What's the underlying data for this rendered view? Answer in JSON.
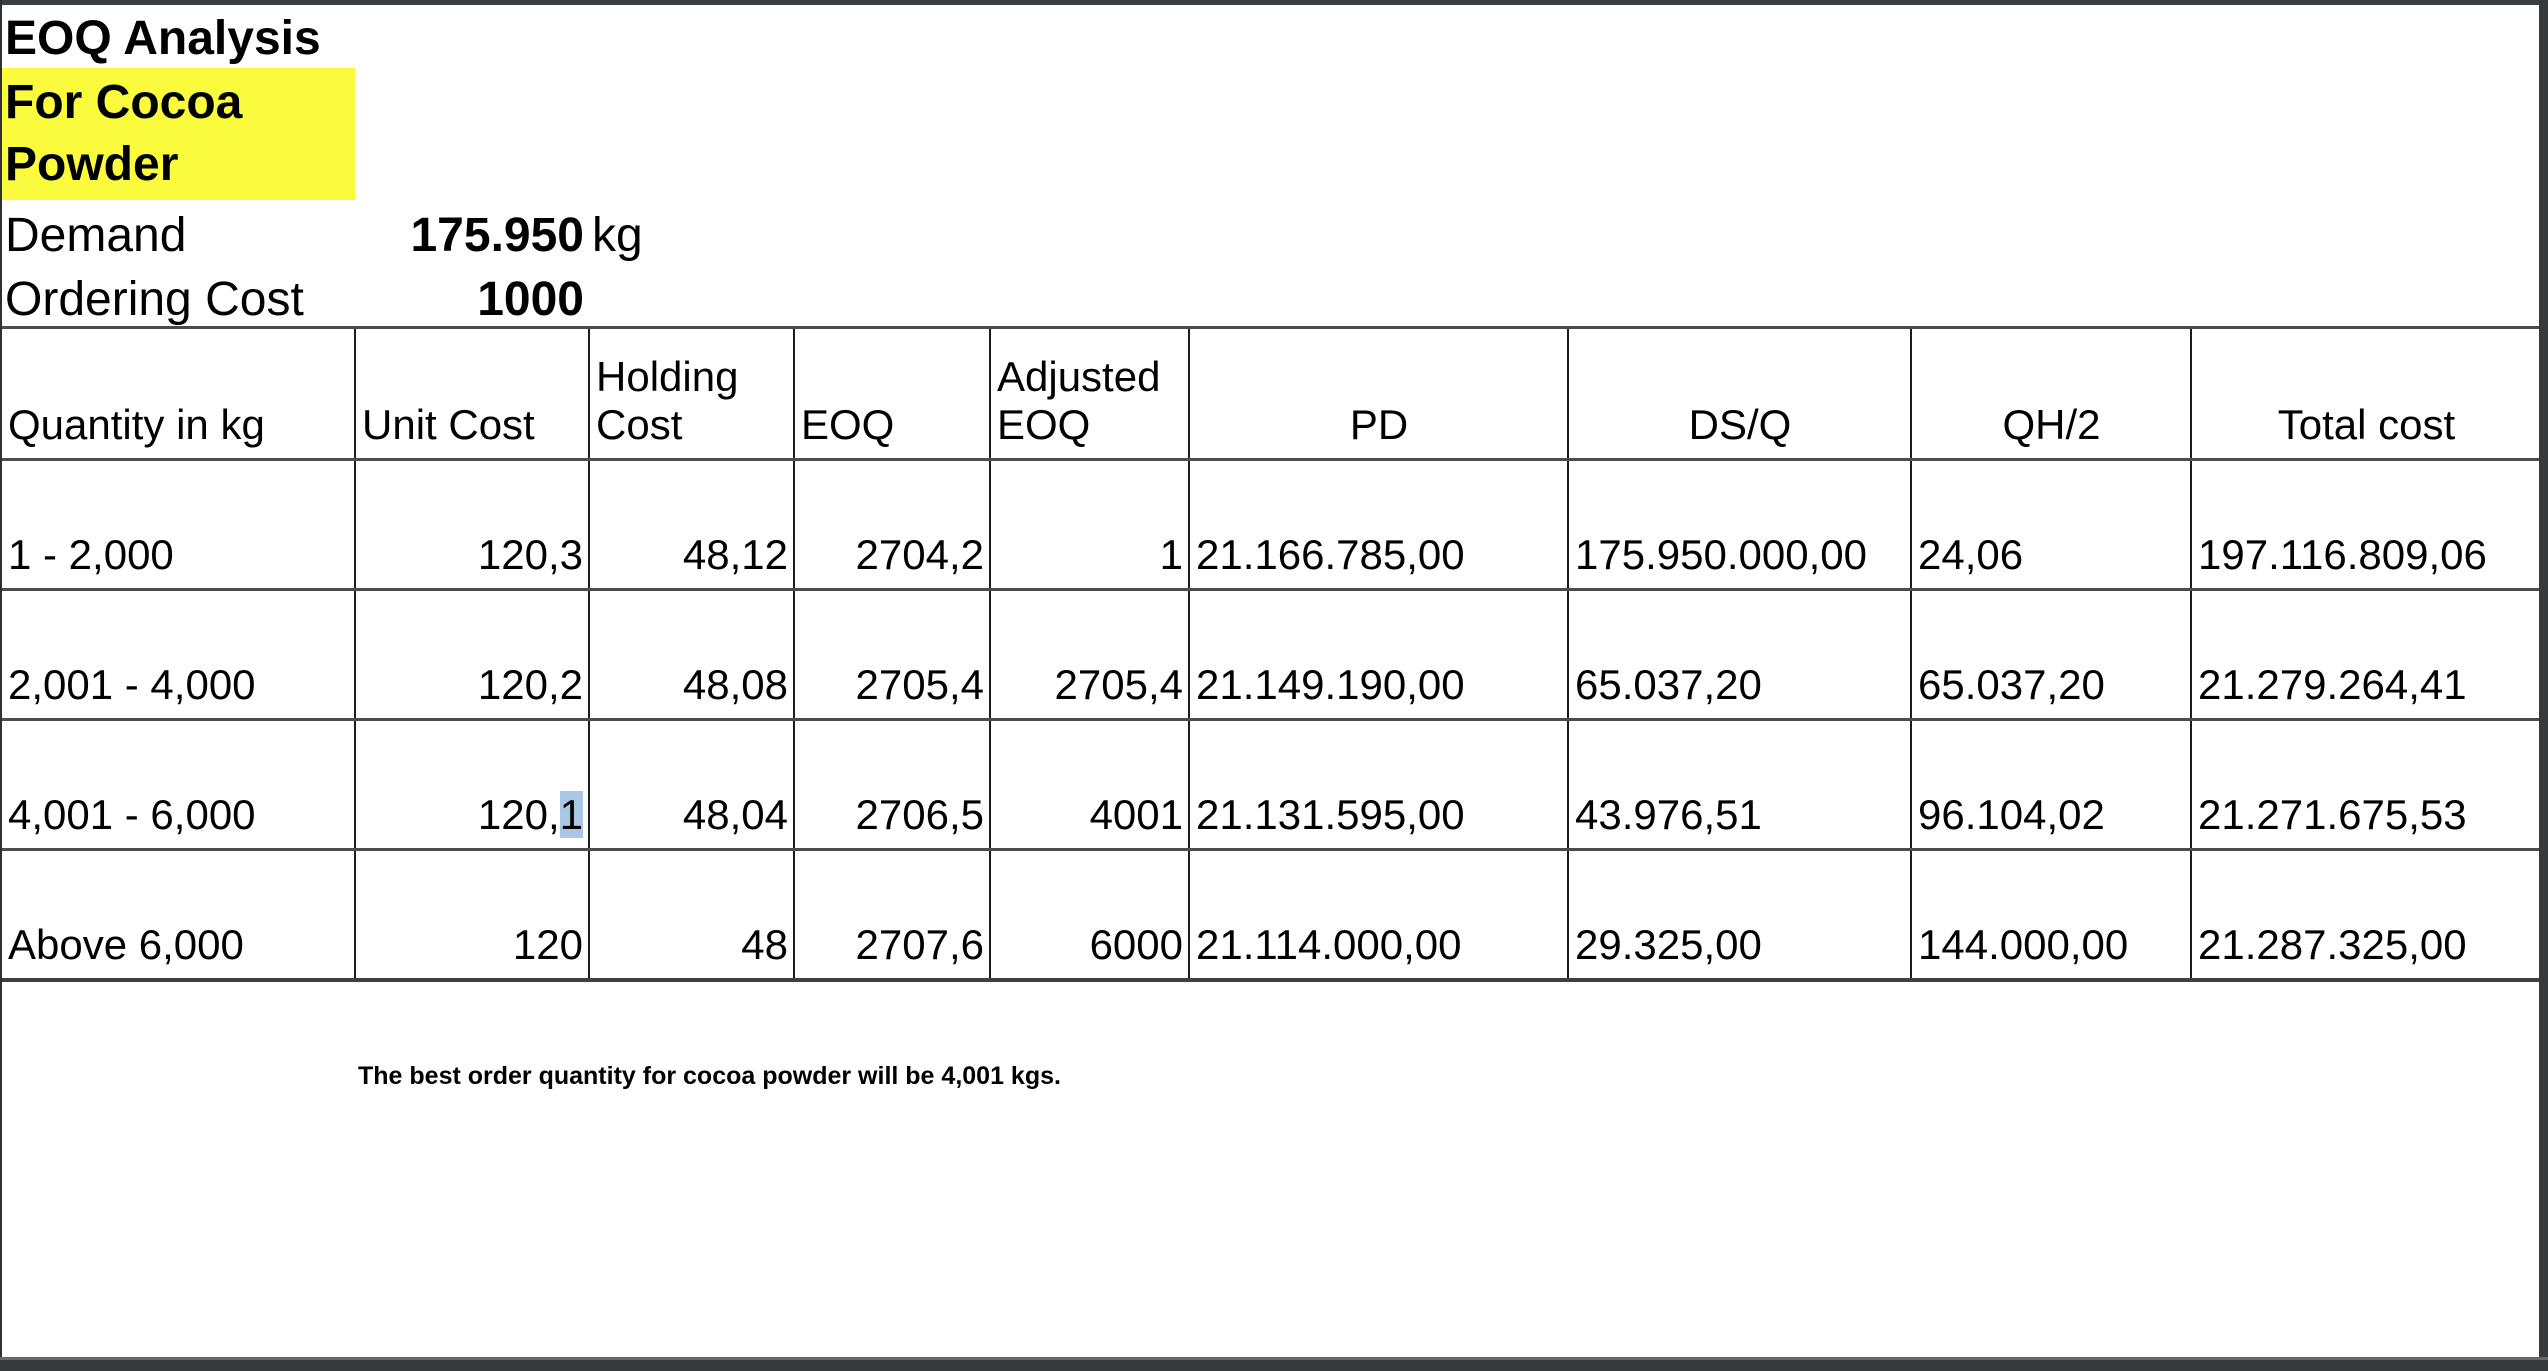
{
  "sheet": {
    "title": "EOQ Analysis",
    "subtitle_lines": [
      "For Cocoa",
      "Powder"
    ],
    "highlight_color": "#fbfb3e",
    "selection_color": "#a9c7e5",
    "parameters": [
      {
        "label": "Demand",
        "value": "175.950",
        "unit": "kg"
      },
      {
        "label": "Ordering Cost",
        "value": "1000",
        "unit": ""
      }
    ],
    "table": {
      "headers": [
        "Quantity in kg",
        "Unit Cost",
        "Holding Cost",
        "EOQ",
        "Adjusted EOQ",
        "PD",
        "DS/Q",
        "QH/2",
        "Total cost"
      ],
      "rows": [
        {
          "cells": [
            "1 - 2,000",
            "120,3",
            "48,12",
            "2704,2",
            "1",
            "21.166.785,00",
            "175.950.000,00",
            "24,06",
            "197.116.809,06"
          ]
        },
        {
          "cells": [
            "2,001 - 4,000",
            "120,2",
            "48,08",
            "2705,4",
            "2705,4",
            "21.149.190,00",
            "65.037,20",
            "65.037,20",
            "21.279.264,41"
          ]
        },
        {
          "cells": [
            "4,001 - 6,000",
            "120,1",
            "48,04",
            "2706,5",
            "4001",
            "21.131.595,00",
            "43.976,51",
            "96.104,02",
            "21.271.675,53"
          ]
        },
        {
          "cells": [
            "Above 6,000",
            "120",
            "48",
            "2707,6",
            "6000",
            "21.114.000,00",
            "29.325,00",
            "144.000,00",
            "21.287.325,00"
          ]
        }
      ],
      "emphasis_cells": [
        {
          "row_index": 2,
          "cell_index": 8
        }
      ],
      "selection": {
        "row_index": 2,
        "cell_index": 1,
        "selected_text": "1"
      }
    },
    "note": "The best order quantity for cocoa powder will be 4,001 kgs."
  }
}
